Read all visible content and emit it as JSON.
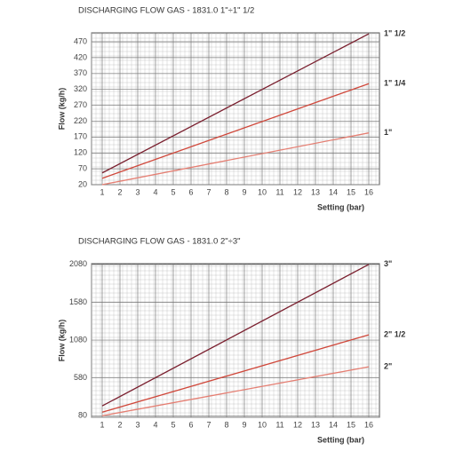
{
  "chart_data": [
    {
      "type": "line",
      "title": "DISCHARGING FLOW GAS - 1831.0 1\"÷1\" 1/2",
      "y_label": "Flow (kg/h)",
      "x_label": "Setting (bar)",
      "x": [
        1,
        16
      ],
      "series": [
        {
          "name": "1\" 1/2",
          "color": "#7a1f2e",
          "values": [
            57,
            495
          ]
        },
        {
          "name": "1\" 1/4",
          "color": "#d0473a",
          "values": [
            40,
            338
          ]
        },
        {
          "name": "1\"",
          "color": "#e57f73",
          "values": [
            20,
            183
          ]
        }
      ],
      "xlim": [
        0.4,
        16.6
      ],
      "xticks": [
        1,
        2,
        3,
        4,
        5,
        6,
        7,
        8,
        9,
        10,
        11,
        12,
        13,
        14,
        15,
        16
      ],
      "ylim": [
        20,
        498
      ],
      "yticks": [
        20,
        70,
        120,
        170,
        220,
        270,
        320,
        370,
        420,
        470
      ],
      "grid": true
    },
    {
      "type": "line",
      "title": "DISCHARGING FLOW GAS - 1831.0 2\"÷3\"",
      "y_label": "Flow (kg/h)",
      "x_label": "Setting (bar)",
      "x": [
        1,
        16
      ],
      "series": [
        {
          "name": "3\"",
          "color": "#7a1f2e",
          "values": [
            210,
            2080
          ]
        },
        {
          "name": "2\" 1/2",
          "color": "#d0473a",
          "values": [
            127,
            1150
          ]
        },
        {
          "name": "2\"",
          "color": "#e57f73",
          "values": [
            80,
            727
          ]
        }
      ],
      "xlim": [
        0.4,
        16.6
      ],
      "xticks": [
        1,
        2,
        3,
        4,
        5,
        6,
        7,
        8,
        9,
        10,
        11,
        12,
        13,
        14,
        15,
        16
      ],
      "ylim": [
        60,
        2090
      ],
      "yticks": [
        80,
        580,
        1080,
        1580,
        2080
      ],
      "grid": true
    }
  ]
}
